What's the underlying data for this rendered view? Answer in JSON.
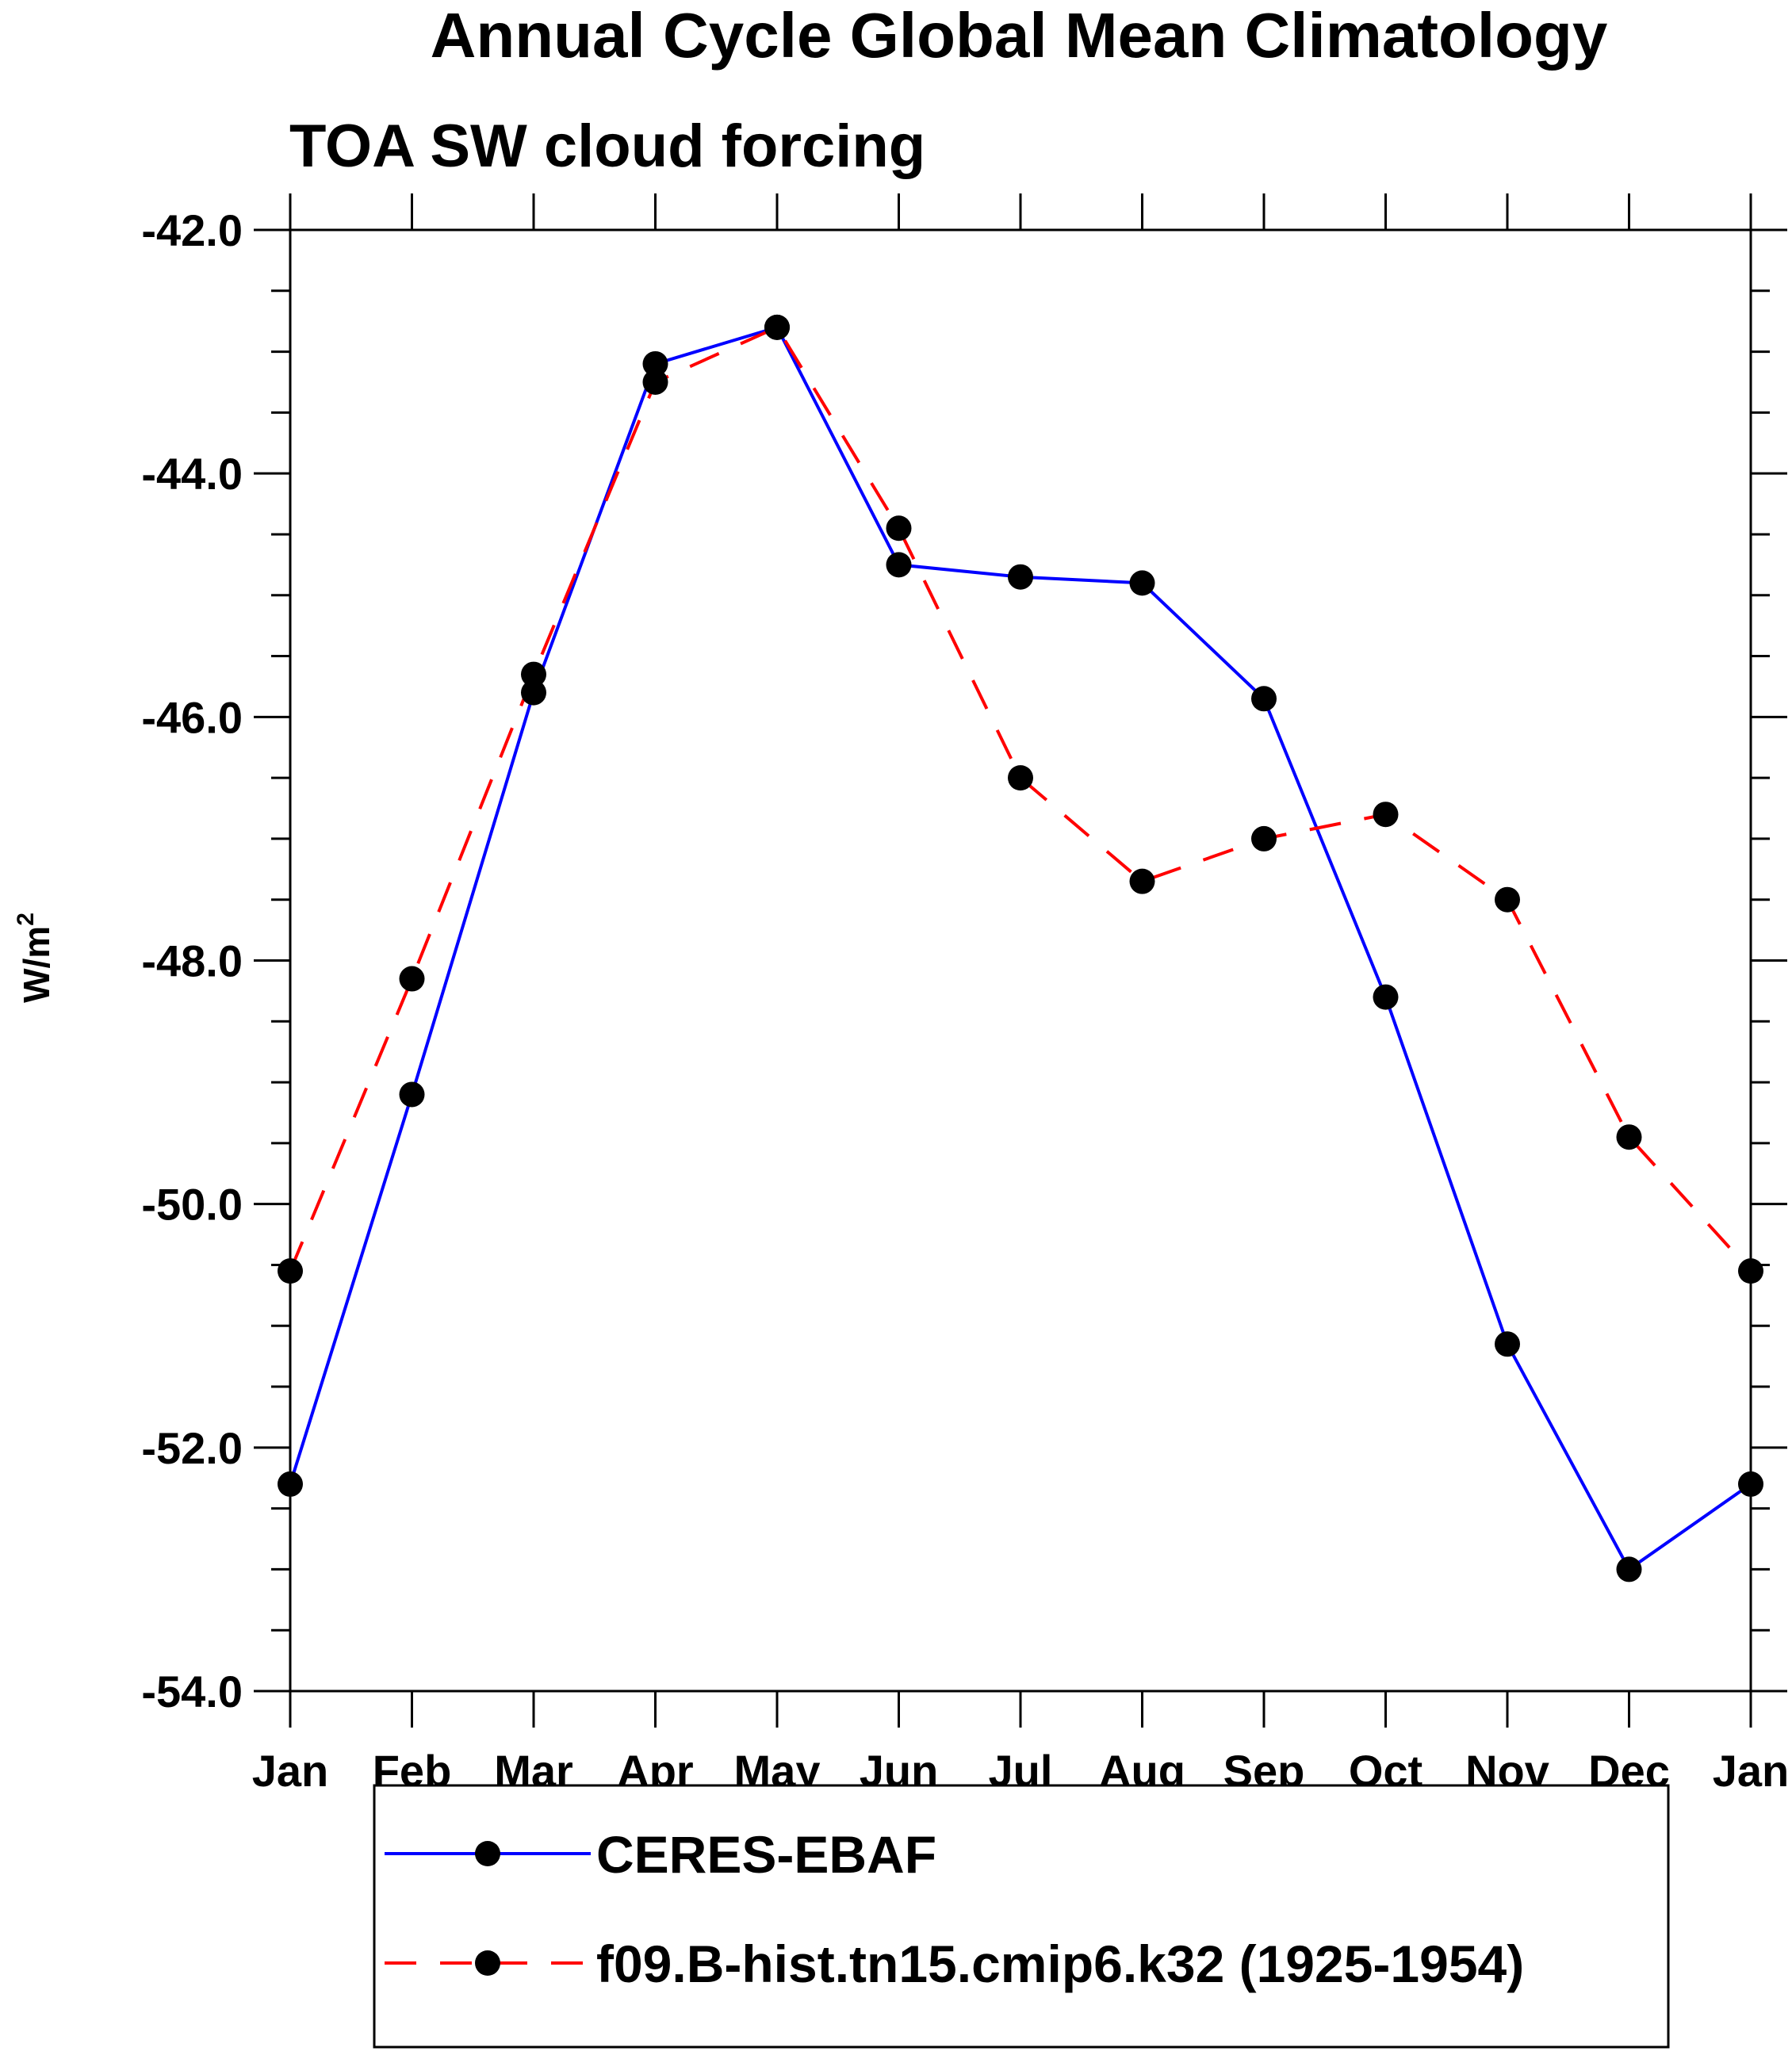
{
  "chart_data": {
    "type": "line",
    "title": "Annual Cycle Global Mean Climatology",
    "subtitle": "TOA SW cloud forcing",
    "ylabel": "W/m",
    "ylabel_superscript": "2",
    "xlabel": "",
    "categories": [
      "Jan",
      "Feb",
      "Mar",
      "Apr",
      "May",
      "Jun",
      "Jul",
      "Aug",
      "Sep",
      "Oct",
      "Nov",
      "Dec",
      "Jan"
    ],
    "ylim": [
      -54.0,
      -42.0
    ],
    "yticks": [
      -42.0,
      -44.0,
      -46.0,
      -48.0,
      -50.0,
      -52.0,
      -54.0
    ],
    "ytick_labels": [
      "-42.0",
      "-44.0",
      "-46.0",
      "-48.0",
      "-50.0",
      "-52.0",
      "-54.0"
    ],
    "legend_position": "bottom",
    "series": [
      {
        "name": "CERES-EBAF",
        "color": "#0000ff",
        "dash": "solid",
        "values": [
          -52.3,
          -49.1,
          -45.8,
          -43.1,
          -42.8,
          -44.75,
          -44.85,
          -44.9,
          -45.85,
          -48.3,
          -51.15,
          -53.0,
          -52.3
        ]
      },
      {
        "name": "f09.B-hist.tn15.cmip6.k32 (1925-1954)",
        "color": "#ff0000",
        "dash": "dashed",
        "values": [
          -50.55,
          -48.15,
          -45.65,
          -43.25,
          -42.8,
          -44.45,
          -46.5,
          -47.35,
          -47.0,
          -46.8,
          -47.5,
          -49.45,
          -50.55
        ]
      }
    ]
  }
}
